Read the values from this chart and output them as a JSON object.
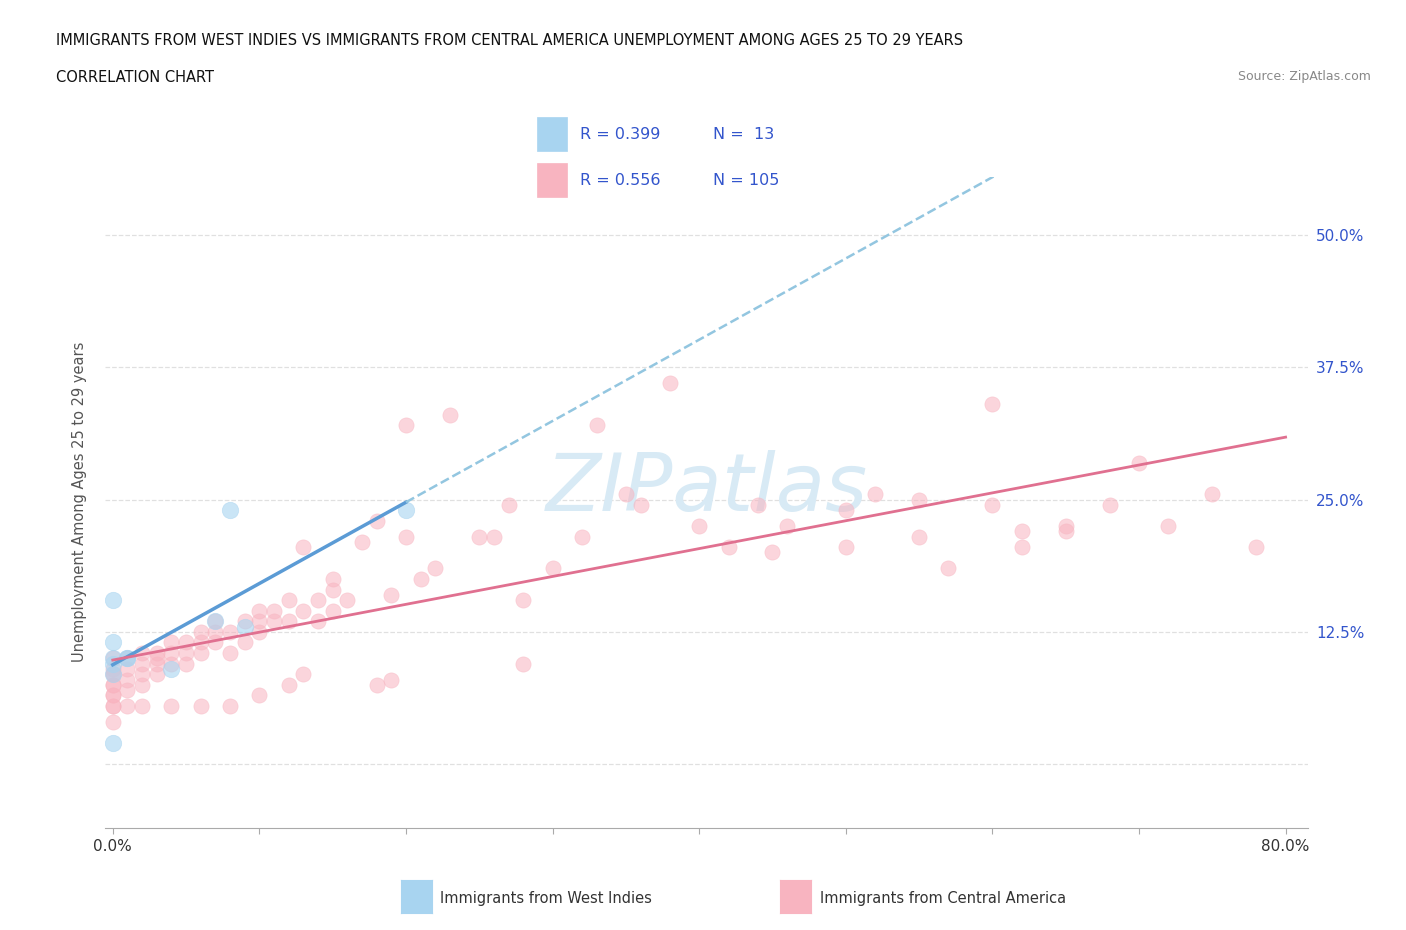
{
  "title_line1": "IMMIGRANTS FROM WEST INDIES VS IMMIGRANTS FROM CENTRAL AMERICA UNEMPLOYMENT AMONG AGES 25 TO 29 YEARS",
  "title_line2": "CORRELATION CHART",
  "source_text": "Source: ZipAtlas.com",
  "ylabel": "Unemployment Among Ages 25 to 29 years",
  "legend_label1": "Immigrants from West Indies",
  "legend_label2": "Immigrants from Central America",
  "r1": 0.399,
  "n1": 13,
  "r2": 0.556,
  "n2": 105,
  "xlim": [
    -0.005,
    0.815
  ],
  "ylim": [
    -0.06,
    0.555
  ],
  "color_blue_fill": "#A8D4F0",
  "color_blue_edge": "#A8D4F0",
  "color_pink_fill": "#F8B4C0",
  "color_pink_edge": "#F8B4C0",
  "color_blue_solid": "#5B9BD5",
  "color_blue_dash": "#93C6E0",
  "color_pink_line": "#E07090",
  "color_text_blue": "#3355CC",
  "color_grid": "#E0E0E0",
  "watermark_color": "#D8EAF5",
  "west_indies_x": [
    0.0,
    0.0,
    0.0,
    0.0,
    0.0,
    0.01,
    0.01,
    0.04,
    0.07,
    0.08,
    0.09,
    0.2,
    0.0
  ],
  "west_indies_y": [
    0.155,
    0.115,
    0.1,
    0.095,
    0.085,
    0.1,
    0.1,
    0.09,
    0.135,
    0.24,
    0.13,
    0.24,
    0.02
  ],
  "central_america_x": [
    0.0,
    0.0,
    0.0,
    0.0,
    0.0,
    0.0,
    0.0,
    0.01,
    0.01,
    0.01,
    0.01,
    0.02,
    0.02,
    0.02,
    0.02,
    0.03,
    0.03,
    0.03,
    0.03,
    0.04,
    0.04,
    0.04,
    0.05,
    0.05,
    0.05,
    0.06,
    0.06,
    0.06,
    0.07,
    0.07,
    0.07,
    0.08,
    0.08,
    0.09,
    0.09,
    0.1,
    0.1,
    0.1,
    0.11,
    0.11,
    0.12,
    0.12,
    0.13,
    0.13,
    0.14,
    0.14,
    0.15,
    0.15,
    0.15,
    0.16,
    0.17,
    0.18,
    0.19,
    0.2,
    0.21,
    0.22,
    0.23,
    0.25,
    0.26,
    0.27,
    0.28,
    0.3,
    0.32,
    0.35,
    0.36,
    0.4,
    0.42,
    0.44,
    0.46,
    0.5,
    0.52,
    0.55,
    0.57,
    0.6,
    0.62,
    0.65,
    0.68,
    0.7,
    0.72,
    0.75,
    0.78,
    0.5,
    0.62,
    0.38,
    0.6,
    0.33,
    0.19,
    0.2,
    0.45,
    0.55,
    0.65,
    0.28,
    0.18,
    0.13,
    0.12,
    0.1,
    0.08,
    0.06,
    0.04,
    0.02,
    0.01,
    0.0,
    0.0,
    0.0,
    0.0
  ],
  "central_america_y": [
    0.04,
    0.055,
    0.065,
    0.075,
    0.085,
    0.09,
    0.1,
    0.07,
    0.08,
    0.09,
    0.1,
    0.075,
    0.085,
    0.095,
    0.105,
    0.085,
    0.095,
    0.1,
    0.105,
    0.095,
    0.105,
    0.115,
    0.095,
    0.105,
    0.115,
    0.105,
    0.115,
    0.125,
    0.115,
    0.125,
    0.135,
    0.105,
    0.125,
    0.115,
    0.135,
    0.125,
    0.135,
    0.145,
    0.135,
    0.145,
    0.135,
    0.155,
    0.145,
    0.205,
    0.135,
    0.155,
    0.145,
    0.165,
    0.175,
    0.155,
    0.21,
    0.23,
    0.16,
    0.215,
    0.175,
    0.185,
    0.33,
    0.215,
    0.215,
    0.245,
    0.155,
    0.185,
    0.215,
    0.255,
    0.245,
    0.225,
    0.205,
    0.245,
    0.225,
    0.205,
    0.255,
    0.215,
    0.185,
    0.245,
    0.205,
    0.225,
    0.245,
    0.285,
    0.225,
    0.255,
    0.205,
    0.24,
    0.22,
    0.36,
    0.34,
    0.32,
    0.08,
    0.32,
    0.2,
    0.25,
    0.22,
    0.095,
    0.075,
    0.085,
    0.075,
    0.065,
    0.055,
    0.055,
    0.055,
    0.055,
    0.055,
    0.055,
    0.065,
    0.075,
    0.085
  ]
}
